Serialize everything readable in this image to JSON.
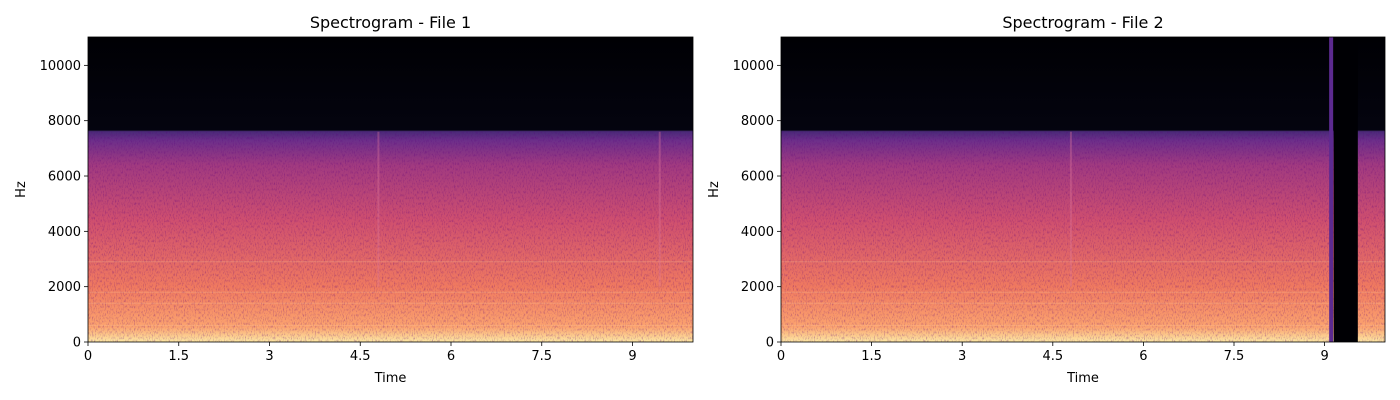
{
  "chart_data": [
    {
      "type": "heatmap",
      "subtype": "spectrogram",
      "title": "Spectrogram - File 1",
      "xlabel": "Time",
      "ylabel": "Hz",
      "xlim": [
        0,
        10
      ],
      "ylim": [
        0,
        11025
      ],
      "xticks": [
        0,
        1.5,
        3,
        4.5,
        6,
        7.5,
        9
      ],
      "xtick_labels": [
        "0",
        "1.5",
        "3",
        "4.5",
        "6",
        "7.5",
        "9"
      ],
      "yticks": [
        0,
        2000,
        4000,
        6000,
        8000,
        10000
      ],
      "ytick_labels": [
        "0",
        "2000",
        "4000",
        "6000",
        "8000",
        "10000"
      ],
      "colormap": "magma",
      "energy_cutoff_hz": 7600,
      "silent_segments": [],
      "transients": [
        4.8,
        9.45
      ]
    },
    {
      "type": "heatmap",
      "subtype": "spectrogram",
      "title": "Spectrogram - File 2",
      "xlabel": "Time",
      "ylabel": "Hz",
      "xlim": [
        0,
        10
      ],
      "ylim": [
        0,
        11025
      ],
      "xticks": [
        0,
        1.5,
        3,
        4.5,
        6,
        7.5,
        9
      ],
      "xtick_labels": [
        "0",
        "1.5",
        "3",
        "4.5",
        "6",
        "7.5",
        "9"
      ],
      "yticks": [
        0,
        2000,
        4000,
        6000,
        8000,
        10000
      ],
      "ytick_labels": [
        "0",
        "2000",
        "4000",
        "6000",
        "8000",
        "10000"
      ],
      "colormap": "magma",
      "energy_cutoff_hz": 7600,
      "silent_segments": [
        [
          9.15,
          9.55
        ]
      ],
      "broadband_lines": [
        9.1
      ],
      "transients": [
        4.8
      ]
    }
  ]
}
